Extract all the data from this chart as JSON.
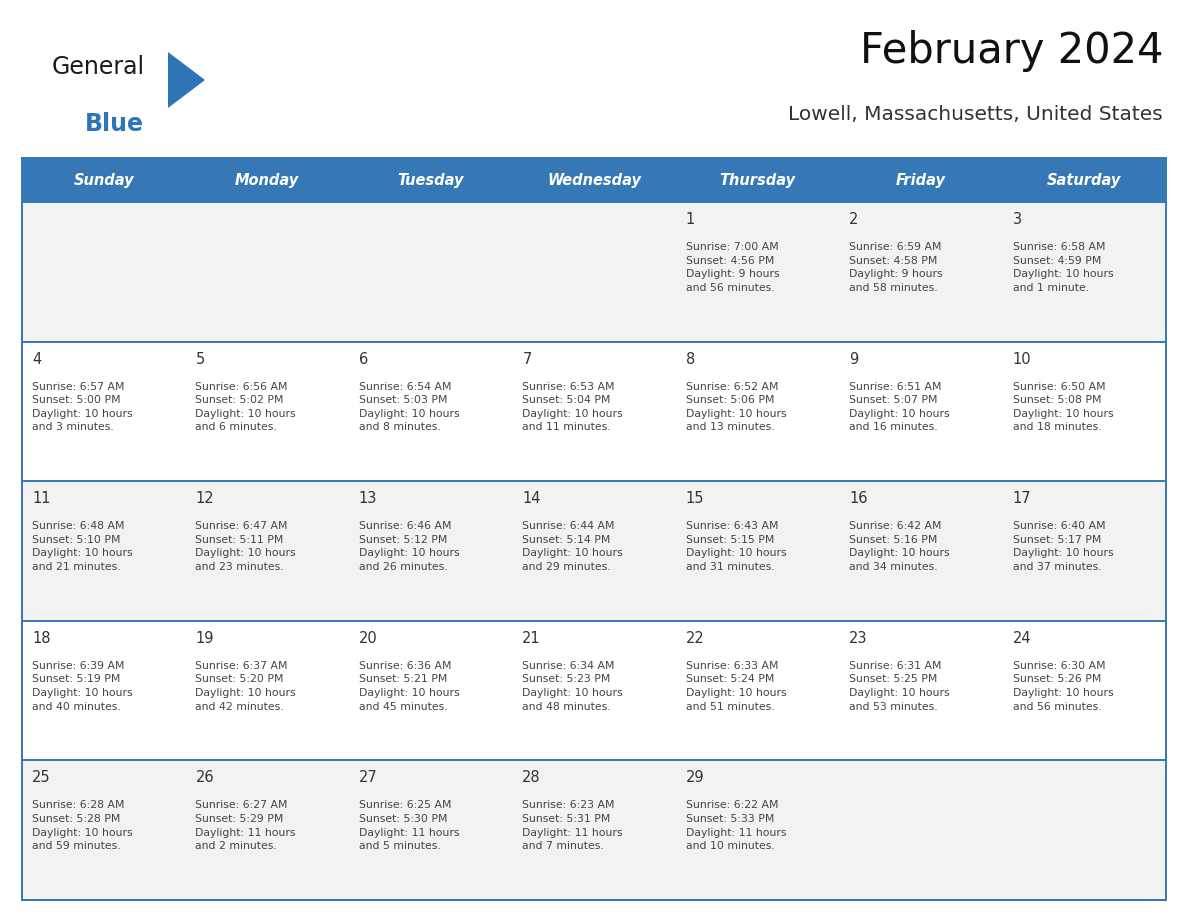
{
  "title": "February 2024",
  "subtitle": "Lowell, Massachusetts, United States",
  "header_bg_color": "#3578b5",
  "header_text_color": "#ffffff",
  "days_of_week": [
    "Sunday",
    "Monday",
    "Tuesday",
    "Wednesday",
    "Thursday",
    "Friday",
    "Saturday"
  ],
  "row_colors": [
    "#f2f2f2",
    "#ffffff"
  ],
  "border_color": "#3578b5",
  "day_number_color": "#333333",
  "cell_text_color": "#444444",
  "logo_general_color": "#1a1a1a",
  "logo_blue_color": "#2e75b6",
  "calendar_data": [
    [
      {
        "day": "",
        "info": ""
      },
      {
        "day": "",
        "info": ""
      },
      {
        "day": "",
        "info": ""
      },
      {
        "day": "",
        "info": ""
      },
      {
        "day": "1",
        "info": "Sunrise: 7:00 AM\nSunset: 4:56 PM\nDaylight: 9 hours\nand 56 minutes."
      },
      {
        "day": "2",
        "info": "Sunrise: 6:59 AM\nSunset: 4:58 PM\nDaylight: 9 hours\nand 58 minutes."
      },
      {
        "day": "3",
        "info": "Sunrise: 6:58 AM\nSunset: 4:59 PM\nDaylight: 10 hours\nand 1 minute."
      }
    ],
    [
      {
        "day": "4",
        "info": "Sunrise: 6:57 AM\nSunset: 5:00 PM\nDaylight: 10 hours\nand 3 minutes."
      },
      {
        "day": "5",
        "info": "Sunrise: 6:56 AM\nSunset: 5:02 PM\nDaylight: 10 hours\nand 6 minutes."
      },
      {
        "day": "6",
        "info": "Sunrise: 6:54 AM\nSunset: 5:03 PM\nDaylight: 10 hours\nand 8 minutes."
      },
      {
        "day": "7",
        "info": "Sunrise: 6:53 AM\nSunset: 5:04 PM\nDaylight: 10 hours\nand 11 minutes."
      },
      {
        "day": "8",
        "info": "Sunrise: 6:52 AM\nSunset: 5:06 PM\nDaylight: 10 hours\nand 13 minutes."
      },
      {
        "day": "9",
        "info": "Sunrise: 6:51 AM\nSunset: 5:07 PM\nDaylight: 10 hours\nand 16 minutes."
      },
      {
        "day": "10",
        "info": "Sunrise: 6:50 AM\nSunset: 5:08 PM\nDaylight: 10 hours\nand 18 minutes."
      }
    ],
    [
      {
        "day": "11",
        "info": "Sunrise: 6:48 AM\nSunset: 5:10 PM\nDaylight: 10 hours\nand 21 minutes."
      },
      {
        "day": "12",
        "info": "Sunrise: 6:47 AM\nSunset: 5:11 PM\nDaylight: 10 hours\nand 23 minutes."
      },
      {
        "day": "13",
        "info": "Sunrise: 6:46 AM\nSunset: 5:12 PM\nDaylight: 10 hours\nand 26 minutes."
      },
      {
        "day": "14",
        "info": "Sunrise: 6:44 AM\nSunset: 5:14 PM\nDaylight: 10 hours\nand 29 minutes."
      },
      {
        "day": "15",
        "info": "Sunrise: 6:43 AM\nSunset: 5:15 PM\nDaylight: 10 hours\nand 31 minutes."
      },
      {
        "day": "16",
        "info": "Sunrise: 6:42 AM\nSunset: 5:16 PM\nDaylight: 10 hours\nand 34 minutes."
      },
      {
        "day": "17",
        "info": "Sunrise: 6:40 AM\nSunset: 5:17 PM\nDaylight: 10 hours\nand 37 minutes."
      }
    ],
    [
      {
        "day": "18",
        "info": "Sunrise: 6:39 AM\nSunset: 5:19 PM\nDaylight: 10 hours\nand 40 minutes."
      },
      {
        "day": "19",
        "info": "Sunrise: 6:37 AM\nSunset: 5:20 PM\nDaylight: 10 hours\nand 42 minutes."
      },
      {
        "day": "20",
        "info": "Sunrise: 6:36 AM\nSunset: 5:21 PM\nDaylight: 10 hours\nand 45 minutes."
      },
      {
        "day": "21",
        "info": "Sunrise: 6:34 AM\nSunset: 5:23 PM\nDaylight: 10 hours\nand 48 minutes."
      },
      {
        "day": "22",
        "info": "Sunrise: 6:33 AM\nSunset: 5:24 PM\nDaylight: 10 hours\nand 51 minutes."
      },
      {
        "day": "23",
        "info": "Sunrise: 6:31 AM\nSunset: 5:25 PM\nDaylight: 10 hours\nand 53 minutes."
      },
      {
        "day": "24",
        "info": "Sunrise: 6:30 AM\nSunset: 5:26 PM\nDaylight: 10 hours\nand 56 minutes."
      }
    ],
    [
      {
        "day": "25",
        "info": "Sunrise: 6:28 AM\nSunset: 5:28 PM\nDaylight: 10 hours\nand 59 minutes."
      },
      {
        "day": "26",
        "info": "Sunrise: 6:27 AM\nSunset: 5:29 PM\nDaylight: 11 hours\nand 2 minutes."
      },
      {
        "day": "27",
        "info": "Sunrise: 6:25 AM\nSunset: 5:30 PM\nDaylight: 11 hours\nand 5 minutes."
      },
      {
        "day": "28",
        "info": "Sunrise: 6:23 AM\nSunset: 5:31 PM\nDaylight: 11 hours\nand 7 minutes."
      },
      {
        "day": "29",
        "info": "Sunrise: 6:22 AM\nSunset: 5:33 PM\nDaylight: 11 hours\nand 10 minutes."
      },
      {
        "day": "",
        "info": ""
      },
      {
        "day": "",
        "info": ""
      }
    ]
  ],
  "figsize": [
    11.88,
    9.18
  ],
  "dpi": 100
}
